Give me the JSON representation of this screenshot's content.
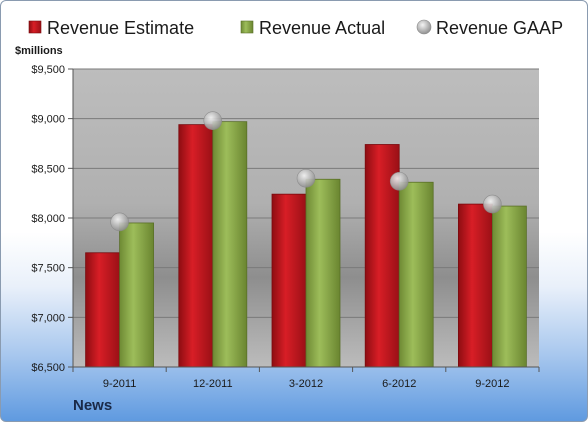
{
  "chart_data": {
    "type": "bar",
    "categories": [
      "9-2011",
      "12-2011",
      "3-2012",
      "6-2012",
      "9-2012"
    ],
    "series": [
      {
        "name": "Revenue Estimate",
        "kind": "bar",
        "color": "#c0141c",
        "values": [
          7650,
          8940,
          8240,
          8740,
          8140
        ]
      },
      {
        "name": "Revenue Actual",
        "kind": "bar",
        "color": "#8aa84a",
        "values": [
          7950,
          8970,
          8390,
          8360,
          8120
        ]
      },
      {
        "name": "Revenue GAAP",
        "kind": "marker",
        "color": "#b0b0b0",
        "values": [
          7960,
          8980,
          8400,
          8370,
          8140
        ]
      }
    ],
    "ylabel": "$millions",
    "ylim": [
      6500,
      9500
    ],
    "yticks": [
      "$6,500",
      "$7,000",
      "$7,500",
      "$8,000",
      "$8,500",
      "$9,000",
      "$9,500"
    ],
    "ytick_values": [
      6500,
      7000,
      7500,
      8000,
      8500,
      9000,
      9500
    ],
    "grid": true,
    "legend_position": "top"
  },
  "footer": {
    "label": "News"
  }
}
